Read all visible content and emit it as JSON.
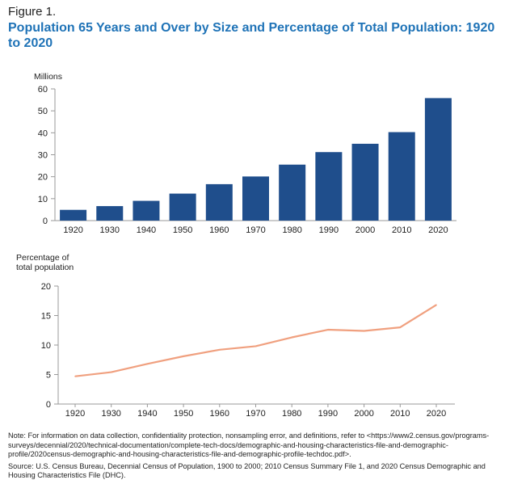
{
  "figure_label": "Figure 1.",
  "title": "Population 65 Years and Over by Size and Percentage of Total Population: 1920 to 2020",
  "colors": {
    "bar": "#1f4e8c",
    "line": "#f0a07f",
    "title": "#1f73b7",
    "axis": "#999999"
  },
  "chart_data": [
    {
      "type": "bar",
      "ylabel": "Millions",
      "categories": [
        "1920",
        "1930",
        "1940",
        "1950",
        "1960",
        "1970",
        "1980",
        "1990",
        "2000",
        "2010",
        "2020"
      ],
      "values": [
        4.9,
        6.6,
        9.0,
        12.3,
        16.6,
        20.1,
        25.5,
        31.2,
        35.0,
        40.3,
        55.8
      ],
      "ylim": [
        0,
        60
      ],
      "yticks": [
        "0",
        "10",
        "20",
        "30",
        "40",
        "50",
        "60"
      ],
      "grid": false
    },
    {
      "type": "line",
      "ylabel_lines": [
        "Percentage of",
        "total population"
      ],
      "categories": [
        "1920",
        "1930",
        "1940",
        "1950",
        "1960",
        "1970",
        "1980",
        "1990",
        "2000",
        "2010",
        "2020"
      ],
      "values": [
        4.7,
        5.4,
        6.8,
        8.1,
        9.2,
        9.8,
        11.3,
        12.6,
        12.4,
        13.0,
        16.8
      ],
      "ylim": [
        0,
        20
      ],
      "yticks": [
        "0",
        "5",
        "10",
        "15",
        "20"
      ],
      "grid": false
    }
  ],
  "note": "Note: For information on data collection, confidentiality protection, nonsampling error, and definitions, refer to <https://www2.census.gov/programs-surveys/decennial/2020/technical-documentation/complete-tech-docs/demographic-and-housing-characteristics-file-and-demographic-profile/2020census-demographic-and-housing-characteristics-file-and-demographic-profile-techdoc.pdf>.",
  "source": "Source: U.S. Census Bureau, Decennial Census of Population, 1900 to 2000; 2010 Census Summary File 1, and 2020 Census Demographic and Housing Characteristics File (DHC)."
}
